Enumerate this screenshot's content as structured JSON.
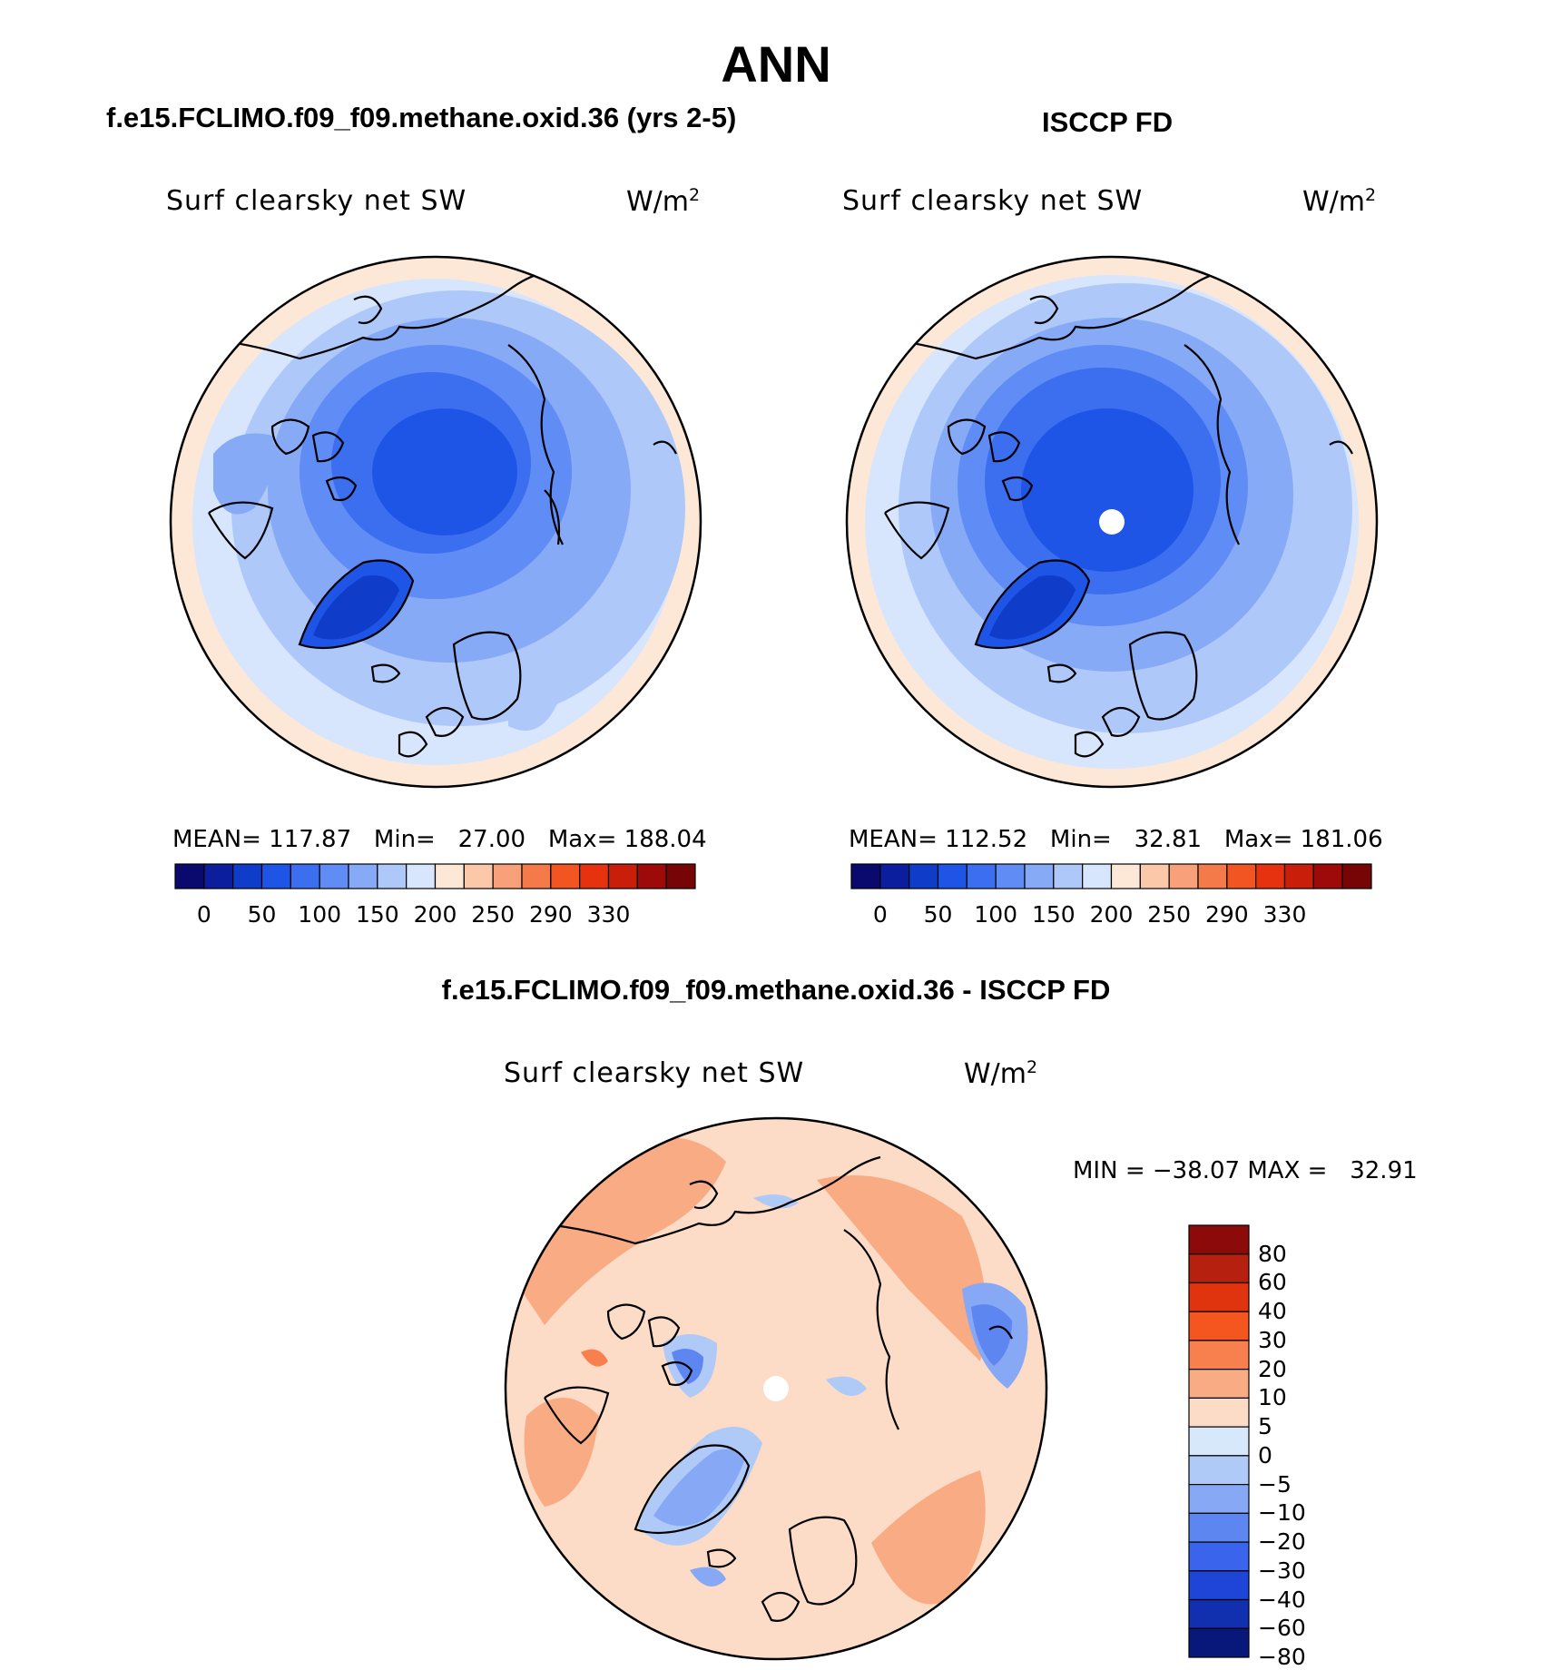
{
  "title": "ANN",
  "panels": [
    {
      "subtitle": "f.e15.FCLIMO.f09_f09.methane.oxid.36 (yrs 2-5)",
      "variable": "Surf clearsky net SW",
      "units_base": "W/m",
      "units_exp": "2",
      "stats": "MEAN= 117.87   Min=   27.00   Max= 188.04"
    },
    {
      "subtitle": "ISCCP FD",
      "variable": "Surf clearsky net SW",
      "units_base": "W/m",
      "units_exp": "2",
      "stats": "MEAN= 112.52   Min=   32.81   Max= 181.06"
    }
  ],
  "colorbar": {
    "colors": [
      "#0a0a6e",
      "#0a1e9e",
      "#0f3cc8",
      "#1e55e6",
      "#3c6ef0",
      "#5f8cf5",
      "#87aaf7",
      "#aec8fa",
      "#d7e6fc",
      "#fde8d8",
      "#fbc8aa",
      "#f8a07a",
      "#f57a4a",
      "#f25522",
      "#e6320f",
      "#c81e0a",
      "#9e0a0a",
      "#780505"
    ],
    "labels": [
      "0",
      "50",
      "100",
      "150",
      "200",
      "250",
      "290",
      "330"
    ]
  },
  "diff_panel": {
    "subtitle": "f.e15.FCLIMO.f09_f09.methane.oxid.36 - ISCCP FD",
    "variable": "Surf clearsky net SW",
    "units_base": "W/m",
    "units_exp": "2",
    "stats": "MIN = −38.07 MAX =   32.91"
  },
  "diff_colorbar": {
    "colors_top_to_bottom": [
      "#8c0a0a",
      "#b5200f",
      "#e0340f",
      "#f5551e",
      "#f7804e",
      "#f9ab84",
      "#fcdcc6",
      "#d8e8fb",
      "#b0caf8",
      "#87a8f5",
      "#5e86f0",
      "#3a64eb",
      "#1e44d8",
      "#1030b0",
      "#08187a"
    ],
    "labels": [
      "80",
      "60",
      "40",
      "30",
      "20",
      "10",
      "5",
      "0",
      "−5",
      "−10",
      "−20",
      "−30",
      "−40",
      "−60",
      "−80"
    ]
  }
}
